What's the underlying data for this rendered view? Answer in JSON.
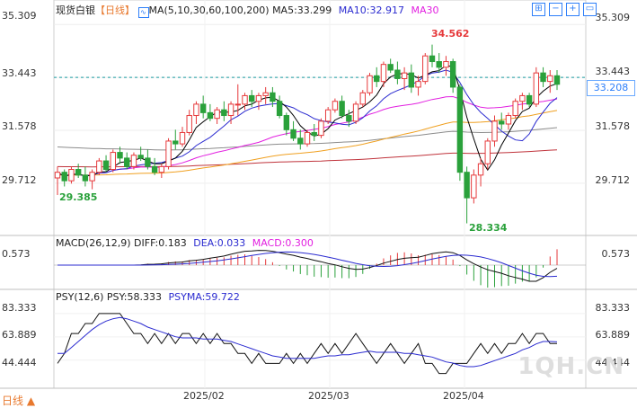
{
  "header": {
    "symbol": "现货白银",
    "period_bracket": "【日线】",
    "ma_label": "MA(5,10,30,60,100,200)",
    "ma5": "MA5:33.299",
    "ma10": "MA10:32.917",
    "ma30": "MA30"
  },
  "price_axis": {
    "labels": [
      "35.309",
      "33.443",
      "31.578",
      "29.712"
    ],
    "current": "33.208"
  },
  "annotations": {
    "high": "34.562",
    "low": "28.334",
    "start_low": "29.385"
  },
  "macd_header": {
    "title": "MACD(26,12,9)",
    "diff": "DIFF:0.183",
    "dea": "DEA:0.033",
    "macd": "MACD:0.300"
  },
  "macd_axis": {
    "label": "0.573"
  },
  "psy_header": {
    "title": "PSY(12,6)",
    "psy": "PSY:58.333",
    "psyma": "PSYMA:59.722"
  },
  "psy_axis": {
    "labels": [
      "83.333",
      "63.889",
      "44.444"
    ]
  },
  "dates": [
    "2025/02",
    "2025/03",
    "2025/04"
  ],
  "period_tab": "日线 ▲",
  "watermark": "1QH.CN",
  "toolbar": {
    "icons": [
      "grid-icon",
      "minus-zoom-icon",
      "plus-zoom-icon",
      "window-icon"
    ]
  },
  "colors": {
    "up": "#e6393b",
    "down": "#2aa13b",
    "ma5": "#000000",
    "ma10": "#2b2bd0",
    "ma30": "#e21fe0",
    "ma60": "#f0a020",
    "ma100": "#8c8c8c",
    "ma200": "#c0343c",
    "price_line": "#1a9aa0"
  },
  "chart_data": {
    "type": "candlestick",
    "period": "daily",
    "y_range": [
      28.0,
      35.6
    ],
    "levels": [
      35.309,
      33.443,
      31.578,
      29.712
    ],
    "current_price": 33.208,
    "high_marker": 34.562,
    "low_marker": 28.334,
    "start_marker": 29.385,
    "candles": [
      [
        29.9,
        30.3,
        29.3,
        30.1
      ],
      [
        30.1,
        30.2,
        29.6,
        29.8
      ],
      [
        29.8,
        30.3,
        29.7,
        30.2
      ],
      [
        30.2,
        30.4,
        29.9,
        30.0
      ],
      [
        30.0,
        30.3,
        29.6,
        29.8
      ],
      [
        29.8,
        30.2,
        29.5,
        30.1
      ],
      [
        30.1,
        30.6,
        30.0,
        30.5
      ],
      [
        30.5,
        30.7,
        30.1,
        30.2
      ],
      [
        30.2,
        30.9,
        30.1,
        30.8
      ],
      [
        30.8,
        31.0,
        30.4,
        30.6
      ],
      [
        30.6,
        30.8,
        30.2,
        30.3
      ],
      [
        30.3,
        30.8,
        30.2,
        30.7
      ],
      [
        30.7,
        31.0,
        30.5,
        30.6
      ],
      [
        30.6,
        30.9,
        30.2,
        30.3
      ],
      [
        30.3,
        30.6,
        30.0,
        30.1
      ],
      [
        30.1,
        30.4,
        29.9,
        30.3
      ],
      [
        30.3,
        31.3,
        30.2,
        31.2
      ],
      [
        31.2,
        31.6,
        30.9,
        31.1
      ],
      [
        31.1,
        31.7,
        31.0,
        31.5
      ],
      [
        31.5,
        32.3,
        31.4,
        32.1
      ],
      [
        32.1,
        32.6,
        31.8,
        32.5
      ],
      [
        32.5,
        32.8,
        32.0,
        32.2
      ],
      [
        32.2,
        32.5,
        31.9,
        32.0
      ],
      [
        32.0,
        32.4,
        31.8,
        32.3
      ],
      [
        32.3,
        32.6,
        31.9,
        32.1
      ],
      [
        32.1,
        32.6,
        31.8,
        32.5
      ],
      [
        32.5,
        33.2,
        32.1,
        32.5
      ],
      [
        32.5,
        32.9,
        32.3,
        32.8
      ],
      [
        32.8,
        33.0,
        32.4,
        32.6
      ],
      [
        32.6,
        32.9,
        32.3,
        32.8
      ],
      [
        32.8,
        33.1,
        32.5,
        32.9
      ],
      [
        32.9,
        33.1,
        32.4,
        32.6
      ],
      [
        32.6,
        32.8,
        32.0,
        32.1
      ],
      [
        32.1,
        32.2,
        31.4,
        31.6
      ],
      [
        31.6,
        31.9,
        31.2,
        31.3
      ],
      [
        31.3,
        31.6,
        30.9,
        31.1
      ],
      [
        31.1,
        31.6,
        31.0,
        31.5
      ],
      [
        31.5,
        31.8,
        31.2,
        31.4
      ],
      [
        31.4,
        32.0,
        31.3,
        31.9
      ],
      [
        31.9,
        32.4,
        31.8,
        32.3
      ],
      [
        32.3,
        32.7,
        32.2,
        32.6
      ],
      [
        32.6,
        32.8,
        32.0,
        32.1
      ],
      [
        32.1,
        32.3,
        31.7,
        31.9
      ],
      [
        31.9,
        32.6,
        31.8,
        32.5
      ],
      [
        32.5,
        33.0,
        32.4,
        32.9
      ],
      [
        32.9,
        33.6,
        32.8,
        33.5
      ],
      [
        33.5,
        33.8,
        33.1,
        33.3
      ],
      [
        33.3,
        34.0,
        33.1,
        33.9
      ],
      [
        33.9,
        34.1,
        33.6,
        33.7
      ],
      [
        33.7,
        34.0,
        33.2,
        33.4
      ],
      [
        33.4,
        33.8,
        33.0,
        33.6
      ],
      [
        33.6,
        33.9,
        32.9,
        33.1
      ],
      [
        33.1,
        33.5,
        32.8,
        33.3
      ],
      [
        33.3,
        34.3,
        33.2,
        34.2
      ],
      [
        34.2,
        34.6,
        33.8,
        34.0
      ],
      [
        34.0,
        34.3,
        33.6,
        33.8
      ],
      [
        33.8,
        34.2,
        33.5,
        34.0
      ],
      [
        34.0,
        34.1,
        32.9,
        33.1
      ],
      [
        33.1,
        33.2,
        29.8,
        30.1
      ],
      [
        30.1,
        30.3,
        28.3,
        29.2
      ],
      [
        29.2,
        30.2,
        29.0,
        30.0
      ],
      [
        30.0,
        30.6,
        29.6,
        30.4
      ],
      [
        30.4,
        31.3,
        30.2,
        31.2
      ],
      [
        31.2,
        32.1,
        31.0,
        31.9
      ],
      [
        31.9,
        32.2,
        31.6,
        31.8
      ],
      [
        31.8,
        32.2,
        31.6,
        32.1
      ],
      [
        32.1,
        32.7,
        32.0,
        32.6
      ],
      [
        32.6,
        32.9,
        32.3,
        32.8
      ],
      [
        32.8,
        32.9,
        32.4,
        32.5
      ],
      [
        32.5,
        33.8,
        32.4,
        33.6
      ],
      [
        33.6,
        33.8,
        33.1,
        33.3
      ],
      [
        33.3,
        33.7,
        32.9,
        33.5
      ],
      [
        33.5,
        33.7,
        33.0,
        33.2
      ]
    ],
    "macd": {
      "diff": 0.183,
      "dea": 0.033,
      "macd": 0.3,
      "axis_label": 0.573
    },
    "psy": {
      "psy": 58.333,
      "psyma": 59.722,
      "levels": [
        83.333,
        63.889,
        44.444
      ],
      "series_psy": [
        41.7,
        50,
        66.7,
        66.7,
        75,
        75,
        83.3,
        83.3,
        83.3,
        83.3,
        75,
        66.7,
        66.7,
        58.3,
        66.7,
        58.3,
        66.7,
        58.3,
        66.7,
        66.7,
        58.3,
        66.7,
        58.3,
        66.7,
        58.3,
        58.3,
        50,
        50,
        41.7,
        50,
        41.7,
        41.7,
        41.7,
        50,
        41.7,
        50,
        41.7,
        50,
        58.3,
        50,
        58.3,
        50,
        58.3,
        66.7,
        58.3,
        50,
        41.7,
        50,
        58.3,
        50,
        41.7,
        50,
        58.3,
        41.7,
        41.7,
        33.3,
        33.3,
        41.7,
        41.7,
        41.7,
        50,
        58.3,
        50,
        58.3,
        50,
        58.3,
        58.3,
        66.7,
        58.3,
        66.7,
        66.7,
        58.3,
        58.3
      ],
      "series_psyma": [
        50,
        50,
        55,
        60,
        65,
        70,
        74,
        77,
        79,
        80,
        79,
        77,
        75,
        72,
        70,
        68,
        66,
        64,
        63,
        63,
        63,
        62,
        62,
        62,
        61,
        60,
        58,
        56,
        54,
        52,
        50,
        48,
        47,
        46,
        46,
        46,
        46,
        46,
        47,
        48,
        48,
        49,
        49,
        50,
        51,
        52,
        51,
        51,
        51,
        51,
        50,
        50,
        49,
        48,
        47,
        45,
        43,
        42,
        40,
        39,
        39,
        40,
        42,
        44,
        46,
        48,
        50,
        53,
        55,
        58,
        60,
        60,
        59.7
      ]
    }
  }
}
